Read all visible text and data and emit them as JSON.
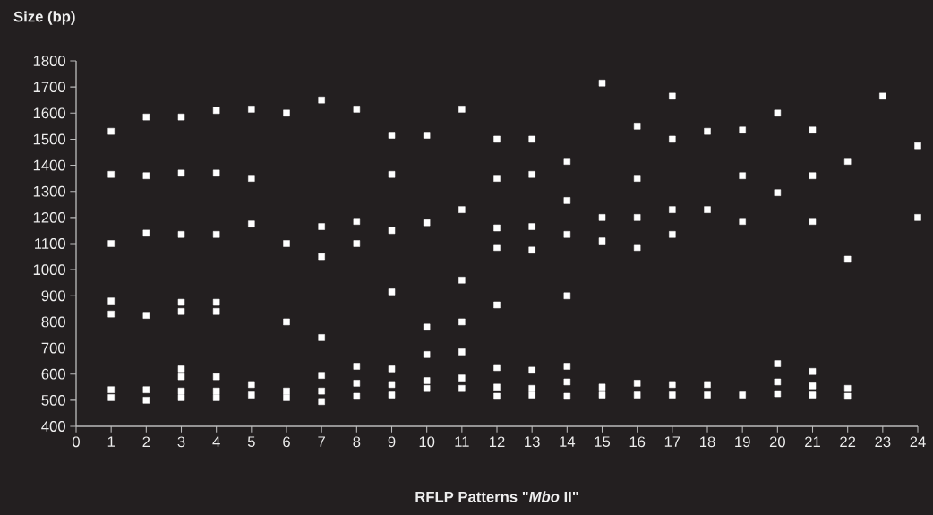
{
  "chart_data": {
    "type": "scatter",
    "xlabel": "RFLP  Patterns \"*Mbo* II\"",
    "ylabel": "Size (bp)",
    "xlim": [
      0,
      24
    ],
    "xticks": [
      0,
      1,
      2,
      3,
      4,
      5,
      6,
      7,
      8,
      9,
      10,
      11,
      12,
      13,
      14,
      15,
      16,
      17,
      18,
      19,
      20,
      21,
      22,
      23,
      24
    ],
    "ylim": [
      400,
      1800
    ],
    "yticks": [
      400,
      500,
      600,
      700,
      800,
      900,
      1000,
      1100,
      1200,
      1300,
      1400,
      1500,
      1600,
      1700,
      1800
    ],
    "grid": false,
    "marker": "square",
    "series": [
      {
        "color": "#ffffff",
        "x": [
          1,
          1,
          1,
          1,
          1,
          1,
          1,
          2,
          2,
          2,
          2,
          2,
          2,
          3,
          3,
          3,
          3,
          3,
          3,
          3,
          3,
          3,
          4,
          4,
          4,
          4,
          4,
          4,
          4,
          4,
          5,
          5,
          5,
          5,
          5,
          6,
          6,
          6,
          6,
          6,
          7,
          7,
          7,
          7,
          7,
          7,
          7,
          8,
          8,
          8,
          8,
          8,
          8,
          9,
          9,
          9,
          9,
          9,
          9,
          9,
          10,
          10,
          10,
          10,
          10,
          10,
          11,
          11,
          11,
          11,
          11,
          11,
          11,
          12,
          12,
          12,
          12,
          12,
          12,
          12,
          12,
          13,
          13,
          13,
          13,
          13,
          13,
          13,
          14,
          14,
          14,
          14,
          14,
          14,
          14,
          15,
          15,
          15,
          15,
          15,
          16,
          16,
          16,
          16,
          16,
          16,
          17,
          17,
          17,
          17,
          17,
          17,
          18,
          18,
          18,
          18,
          19,
          19,
          19,
          19,
          20,
          20,
          20,
          20,
          20,
          21,
          21,
          21,
          21,
          21,
          21,
          22,
          22,
          22,
          22,
          23,
          24,
          24
        ],
        "values": [
          1530,
          1365,
          1100,
          880,
          830,
          540,
          510,
          1585,
          1360,
          1140,
          825,
          540,
          500,
          1585,
          1370,
          1135,
          875,
          840,
          620,
          590,
          535,
          510,
          1610,
          1370,
          1135,
          875,
          840,
          590,
          535,
          510,
          1615,
          1350,
          1175,
          560,
          520,
          1600,
          1100,
          800,
          535,
          510,
          1650,
          1165,
          1050,
          740,
          595,
          535,
          495,
          1615,
          1185,
          1100,
          630,
          565,
          515,
          1515,
          1365,
          1150,
          915,
          620,
          560,
          520,
          1515,
          1180,
          780,
          675,
          575,
          545,
          1615,
          1230,
          960,
          800,
          685,
          585,
          545,
          1500,
          1350,
          1160,
          1085,
          865,
          625,
          550,
          515,
          1500,
          1365,
          1165,
          1075,
          615,
          545,
          520,
          1415,
          1265,
          1135,
          900,
          630,
          570,
          515,
          1715,
          1200,
          1110,
          550,
          520,
          1550,
          1350,
          1200,
          1085,
          565,
          520,
          1665,
          1500,
          1230,
          1135,
          560,
          520,
          1530,
          1230,
          560,
          520,
          1535,
          1360,
          1185,
          520,
          1600,
          1295,
          640,
          570,
          525,
          1535,
          1360,
          1185,
          610,
          555,
          520,
          1415,
          1040,
          545,
          515,
          1665,
          1475,
          1200
        ]
      }
    ]
  }
}
